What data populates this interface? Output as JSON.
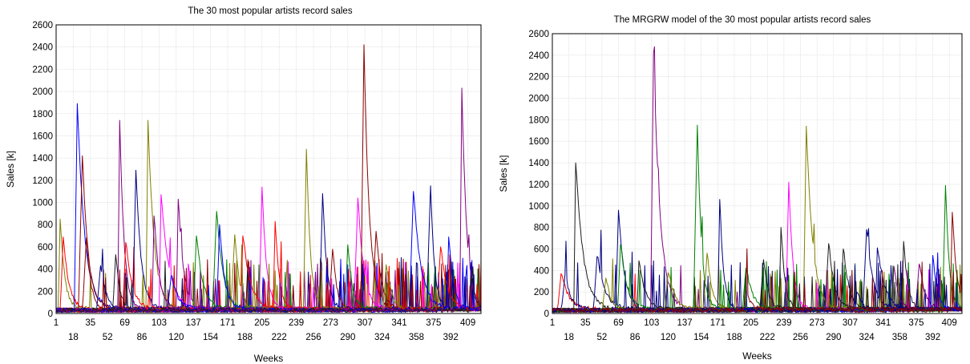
{
  "palette": [
    "#000080",
    "#8b0000",
    "#800080",
    "#008000",
    "#ff0000",
    "#808000",
    "#ff00ff",
    "#0000ff",
    "#1c1c1c",
    "#a52a2a"
  ],
  "charts": [
    {
      "title": "The 30 most popular artists record sales",
      "xlabel": "Weeks",
      "ylabel": "Sales [k]"
    },
    {
      "title": "The MRGRW model of the 30 most popular artists record sales",
      "xlabel": "Weeks",
      "ylabel": "Sales [k]"
    }
  ],
  "chart_data": [
    {
      "type": "line",
      "title": "The 30 most popular artists record sales",
      "xlabel": "Weeks",
      "ylabel": "Sales [k]",
      "xlim": [
        1,
        422
      ],
      "ylim": [
        0,
        2600
      ],
      "grid": true,
      "x_ticks_upper": [
        1,
        35,
        69,
        103,
        137,
        171,
        205,
        239,
        273,
        307,
        341,
        375,
        409
      ],
      "x_ticks_lower": [
        18,
        52,
        86,
        120,
        154,
        188,
        222,
        256,
        290,
        324,
        358,
        392
      ],
      "y_ticks": [
        0,
        200,
        400,
        600,
        800,
        1000,
        1200,
        1400,
        1600,
        1800,
        2000,
        2200,
        2400,
        2600
      ],
      "series_count": 30,
      "peaks": [
        {
          "week": 5,
          "value": 850,
          "color": "#808000"
        },
        {
          "week": 8,
          "value": 690,
          "color": "#ff0000"
        },
        {
          "week": 22,
          "value": 1890,
          "color": "#0000ff"
        },
        {
          "week": 27,
          "value": 1420,
          "color": "#8b0000"
        },
        {
          "week": 31,
          "value": 680,
          "color": "#8b0000"
        },
        {
          "week": 45,
          "value": 430,
          "color": "#000080"
        },
        {
          "week": 60,
          "value": 530,
          "color": "#1c1c1c"
        },
        {
          "week": 64,
          "value": 1740,
          "color": "#800080"
        },
        {
          "week": 70,
          "value": 640,
          "color": "#ff0000"
        },
        {
          "week": 80,
          "value": 1290,
          "color": "#000080"
        },
        {
          "week": 92,
          "value": 1740,
          "color": "#808000"
        },
        {
          "week": 98,
          "value": 880,
          "color": "#800080"
        },
        {
          "week": 105,
          "value": 1070,
          "color": "#ff00ff"
        },
        {
          "week": 115,
          "value": 340,
          "color": "#0000ff"
        },
        {
          "week": 122,
          "value": 1030,
          "color": "#800080"
        },
        {
          "week": 140,
          "value": 700,
          "color": "#008000"
        },
        {
          "week": 160,
          "value": 920,
          "color": "#008000"
        },
        {
          "week": 163,
          "value": 800,
          "color": "#0000ff"
        },
        {
          "week": 178,
          "value": 710,
          "color": "#808000"
        },
        {
          "week": 186,
          "value": 700,
          "color": "#ff0000"
        },
        {
          "week": 205,
          "value": 1140,
          "color": "#ff00ff"
        },
        {
          "week": 218,
          "value": 830,
          "color": "#ff0000"
        },
        {
          "week": 249,
          "value": 1480,
          "color": "#808000"
        },
        {
          "week": 265,
          "value": 1080,
          "color": "#000080"
        },
        {
          "week": 275,
          "value": 580,
          "color": "#8b0000"
        },
        {
          "week": 290,
          "value": 620,
          "color": "#008000"
        },
        {
          "week": 300,
          "value": 1040,
          "color": "#ff00ff"
        },
        {
          "week": 306,
          "value": 2420,
          "color": "#8b0000"
        },
        {
          "week": 318,
          "value": 740,
          "color": "#8b0000"
        },
        {
          "week": 328,
          "value": 440,
          "color": "#808000"
        },
        {
          "week": 355,
          "value": 1100,
          "color": "#0000ff"
        },
        {
          "week": 372,
          "value": 1150,
          "color": "#000080"
        },
        {
          "week": 382,
          "value": 600,
          "color": "#ff0000"
        },
        {
          "week": 390,
          "value": 690,
          "color": "#0000ff"
        },
        {
          "week": 403,
          "value": 2030,
          "color": "#800080"
        },
        {
          "week": 412,
          "value": 320,
          "color": "#1c1c1c"
        }
      ]
    },
    {
      "type": "line",
      "title": "The MRGRW model of the 30 most popular artists record sales",
      "xlabel": "Weeks",
      "ylabel": "Sales [k]",
      "xlim": [
        1,
        422
      ],
      "ylim": [
        0,
        2600
      ],
      "grid": true,
      "x_ticks_upper": [
        1,
        35,
        69,
        103,
        137,
        171,
        205,
        239,
        273,
        307,
        341,
        375,
        409
      ],
      "x_ticks_lower": [
        18,
        52,
        86,
        120,
        154,
        188,
        222,
        256,
        290,
        324,
        358,
        392
      ],
      "y_ticks": [
        0,
        200,
        400,
        600,
        800,
        1000,
        1200,
        1400,
        1600,
        1800,
        2000,
        2200,
        2400,
        2600
      ],
      "series_count": 30,
      "peaks": [
        {
          "week": 10,
          "value": 370,
          "color": "#ff0000"
        },
        {
          "week": 14,
          "value": 360,
          "color": "#000080"
        },
        {
          "week": 25,
          "value": 1400,
          "color": "#1c1c1c"
        },
        {
          "week": 47,
          "value": 530,
          "color": "#000080"
        },
        {
          "week": 56,
          "value": 330,
          "color": "#808000"
        },
        {
          "week": 69,
          "value": 960,
          "color": "#000080"
        },
        {
          "week": 71,
          "value": 640,
          "color": "#008000"
        },
        {
          "week": 90,
          "value": 490,
          "color": "#1c1c1c"
        },
        {
          "week": 105,
          "value": 2420,
          "color": "#800080"
        },
        {
          "week": 120,
          "value": 380,
          "color": "#808000"
        },
        {
          "week": 150,
          "value": 1750,
          "color": "#008000"
        },
        {
          "week": 160,
          "value": 560,
          "color": "#808000"
        },
        {
          "week": 173,
          "value": 1060,
          "color": "#000080"
        },
        {
          "week": 200,
          "value": 420,
          "color": "#008000"
        },
        {
          "week": 218,
          "value": 500,
          "color": "#1c1c1c"
        },
        {
          "week": 236,
          "value": 800,
          "color": "#1c1c1c"
        },
        {
          "week": 244,
          "value": 1220,
          "color": "#ff00ff"
        },
        {
          "week": 262,
          "value": 1740,
          "color": "#808000"
        },
        {
          "week": 285,
          "value": 650,
          "color": "#1c1c1c"
        },
        {
          "week": 300,
          "value": 600,
          "color": "#1c1c1c"
        },
        {
          "week": 324,
          "value": 780,
          "color": "#000080"
        },
        {
          "week": 335,
          "value": 610,
          "color": "#000080"
        },
        {
          "week": 352,
          "value": 440,
          "color": "#800080"
        },
        {
          "week": 362,
          "value": 670,
          "color": "#1c1c1c"
        },
        {
          "week": 378,
          "value": 460,
          "color": "#800080"
        },
        {
          "week": 392,
          "value": 540,
          "color": "#0000ff"
        },
        {
          "week": 405,
          "value": 1190,
          "color": "#008000"
        },
        {
          "week": 412,
          "value": 940,
          "color": "#8b0000"
        }
      ]
    }
  ]
}
